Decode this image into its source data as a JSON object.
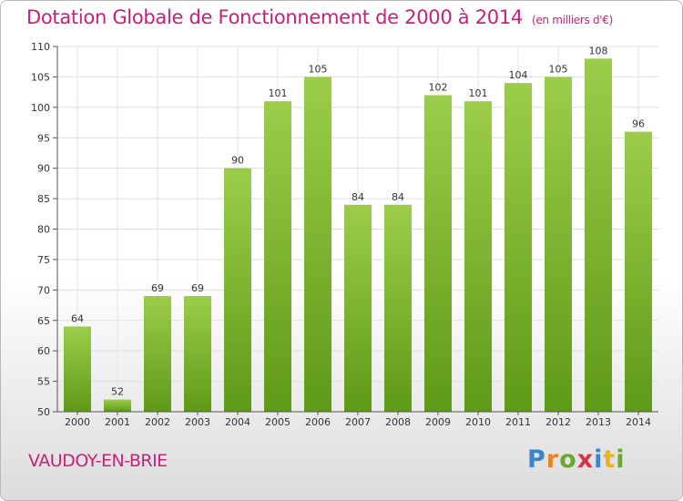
{
  "title": "Dotation Globale de Fonctionnement de 2000 à 2014",
  "subtitle": "(en milliers d'€)",
  "commune": "VAUDOY-EN-BRIE",
  "logo": [
    "P",
    "r",
    "o",
    "x",
    "i",
    "t",
    "i"
  ],
  "colors": {
    "bar_top": "#9ccd4a",
    "bar_bottom": "#5e9a16",
    "accent": "#c8207a"
  },
  "chart_data": {
    "type": "bar",
    "title": "Dotation Globale de Fonctionnement de 2000 à 2014",
    "subtitle": "(en milliers d'€)",
    "categories": [
      "2000",
      "2001",
      "2002",
      "2003",
      "2004",
      "2005",
      "2006",
      "2007",
      "2008",
      "2009",
      "2010",
      "2011",
      "2012",
      "2013",
      "2014"
    ],
    "values": [
      64,
      52,
      69,
      69,
      90,
      101,
      105,
      84,
      84,
      102,
      101,
      104,
      105,
      108,
      96
    ],
    "ylim": [
      50,
      110
    ],
    "yticks": [
      50,
      55,
      60,
      65,
      70,
      75,
      80,
      85,
      90,
      95,
      100,
      105,
      110
    ],
    "grid": true
  }
}
